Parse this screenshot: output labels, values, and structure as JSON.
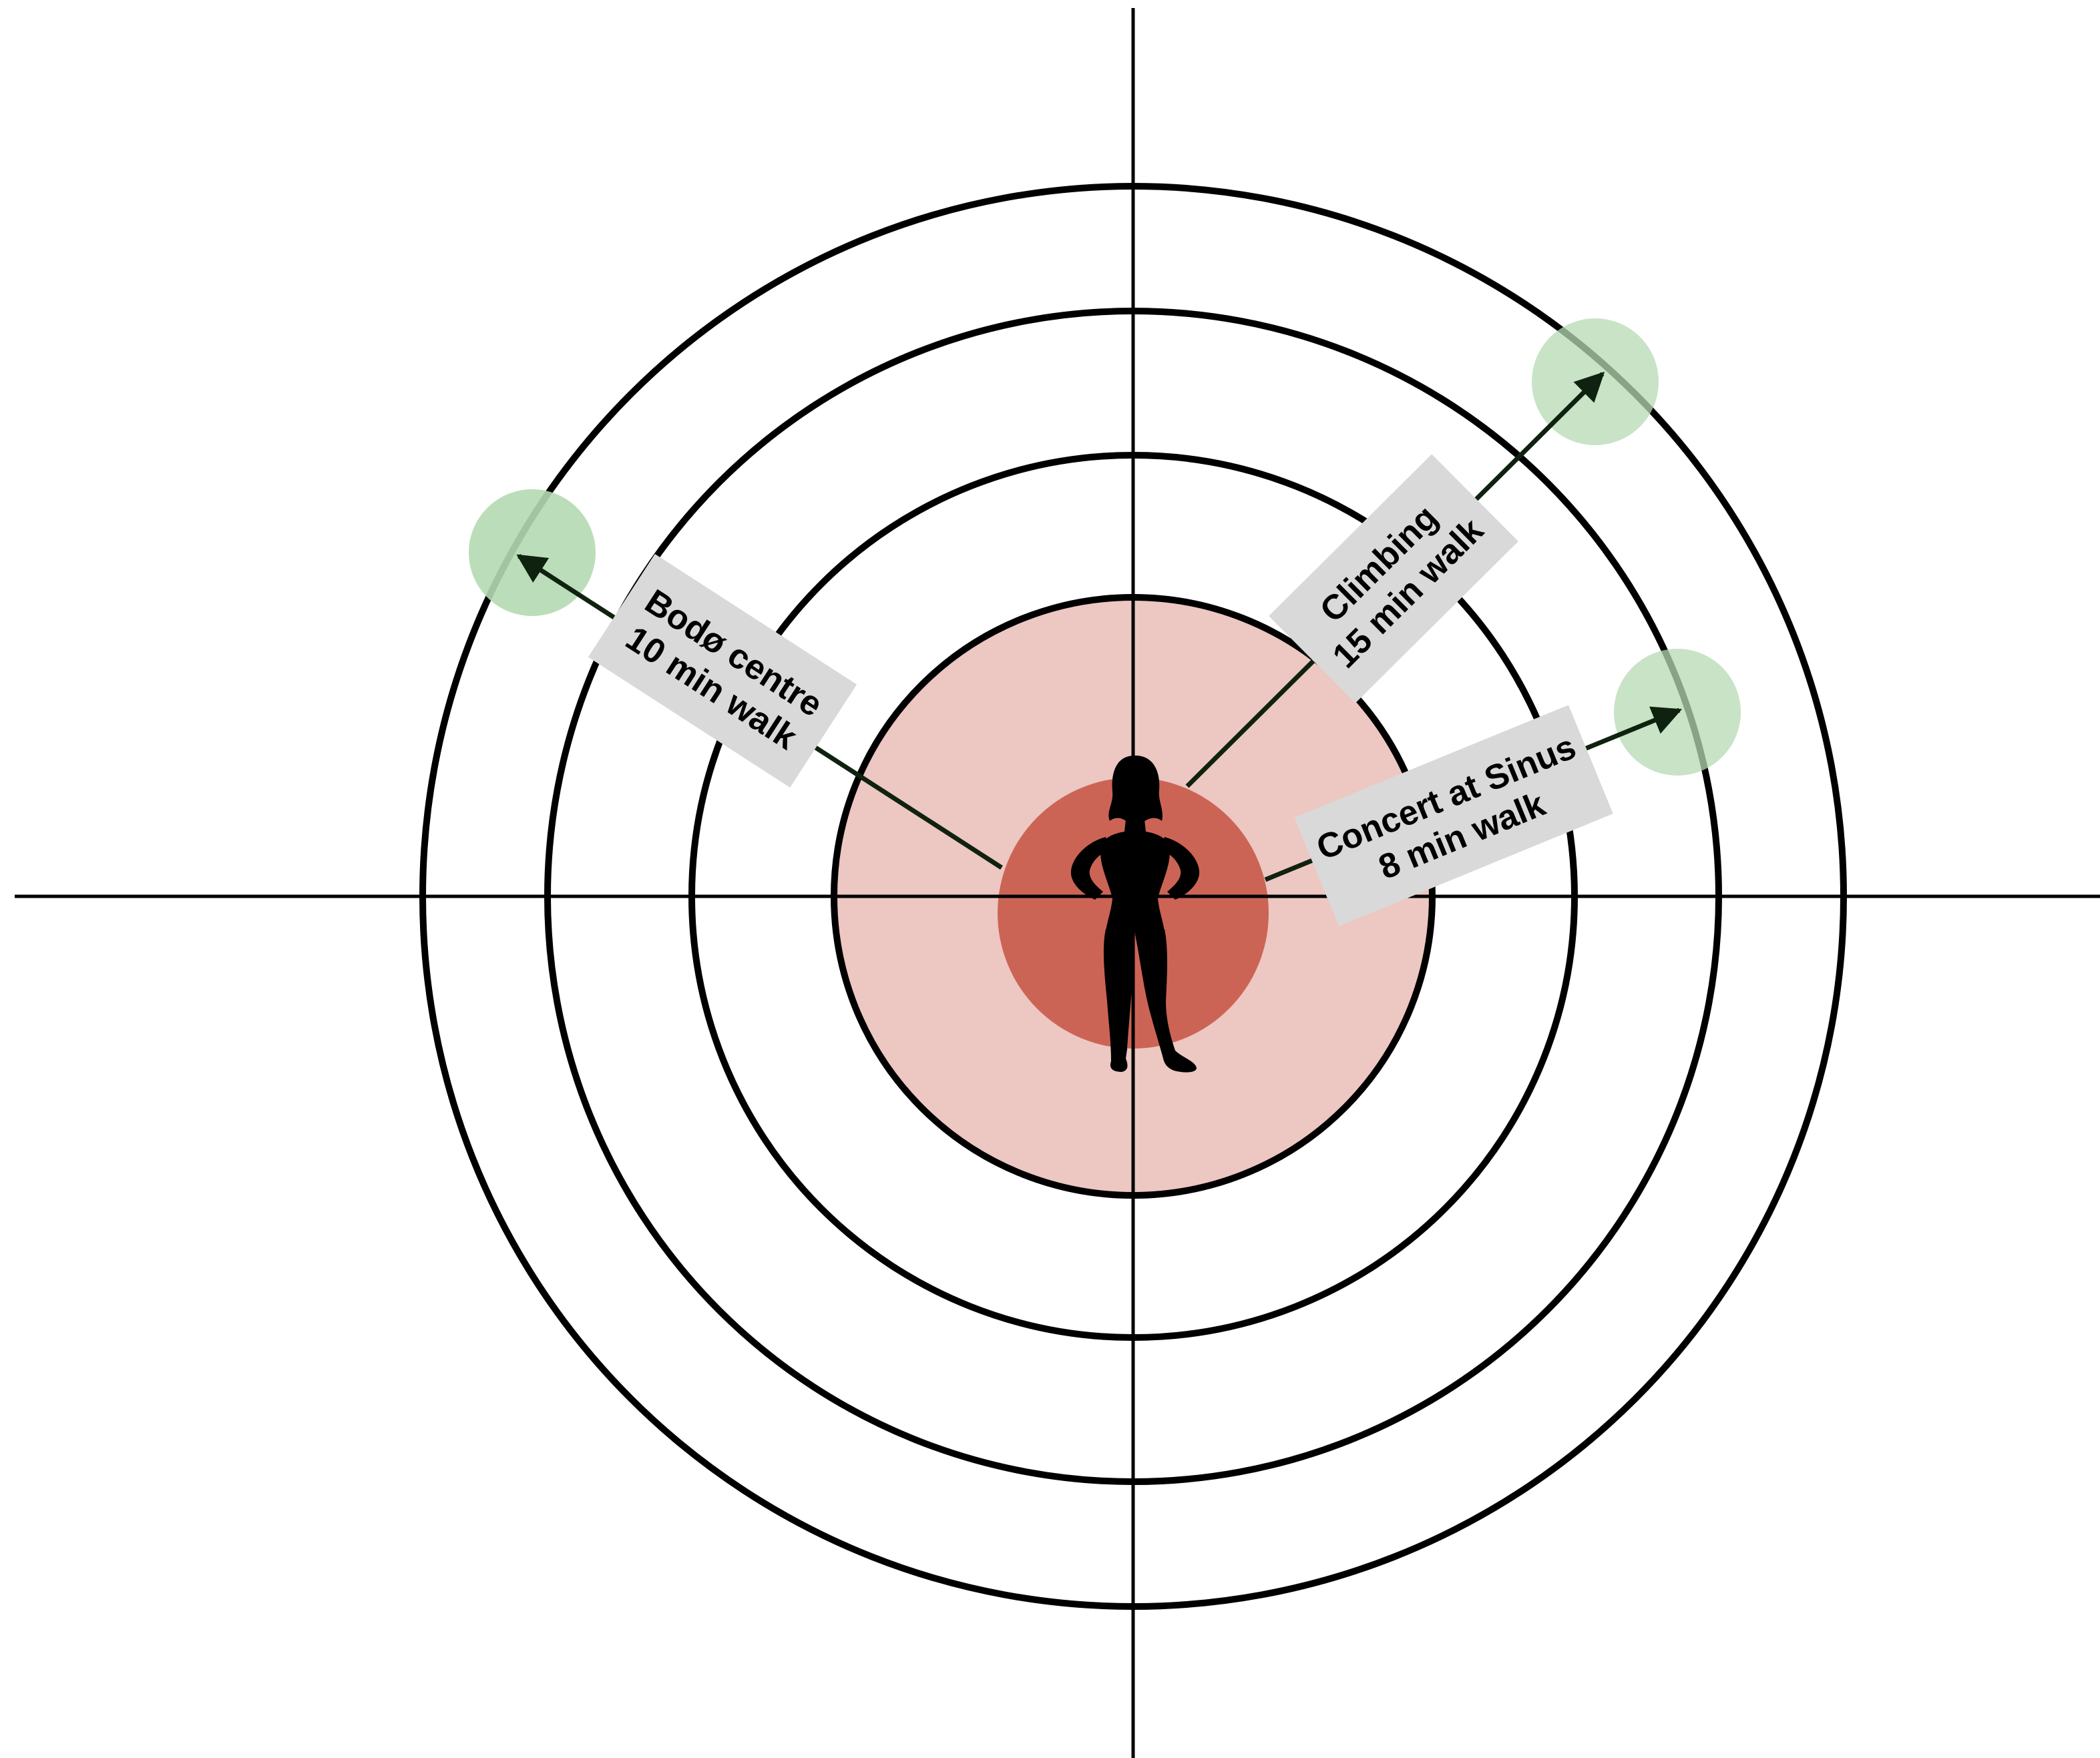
{
  "center_figure": {
    "icon": "person-silhouette-icon"
  },
  "colors": {
    "background": "#ffffff",
    "ring_stroke": "#000000",
    "inner_zone_fill": "#edc7c2",
    "core_zone_fill": "#cc6455",
    "destination_fill": "#b5d9b3",
    "label_box_fill": "#d9d9d9",
    "arrow_color": "#0f220f"
  },
  "destinations": [
    {
      "id": "bodo-centre",
      "line1": "Bodø centre",
      "line2": "10 min walk"
    },
    {
      "id": "climbing",
      "line1": "Climbing",
      "line2": "15 min walk"
    },
    {
      "id": "concert",
      "line1": "Concert at Sinus",
      "line2": "8 min walk"
    }
  ]
}
